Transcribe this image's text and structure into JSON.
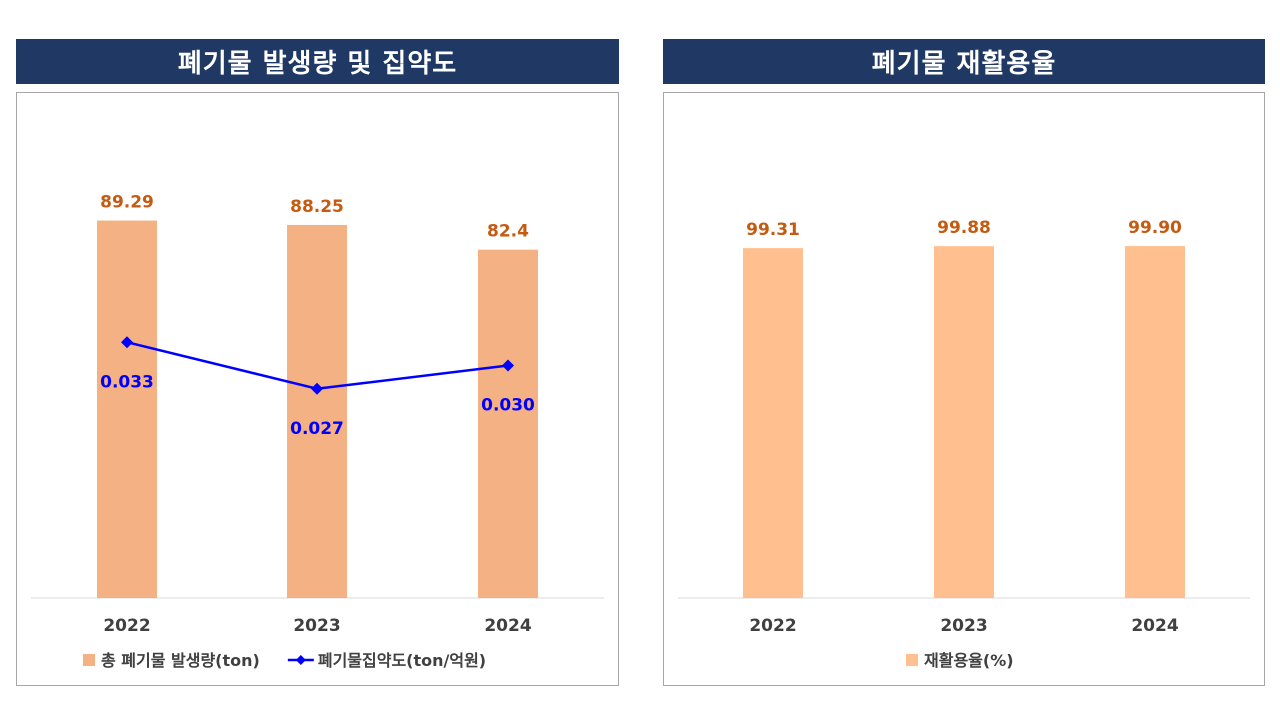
{
  "colors": {
    "header_bg": "#1f3864",
    "bar_left": "#f4b183",
    "bar_right": "#ffbf8e",
    "line": "#0000ff",
    "bar_label": "#c55a11",
    "axis_text": "#404040"
  },
  "chart_data": [
    {
      "type": "bar",
      "title": "폐기물 발생량 및 집약도",
      "categories": [
        "2022",
        "2023",
        "2024"
      ],
      "series": [
        {
          "name": "총 폐기물 발생량(ton)",
          "kind": "bar",
          "values": [
            89.29,
            88.25,
            82.4
          ],
          "labels": [
            "89.29",
            "88.25",
            "82.4"
          ]
        },
        {
          "name": "폐기물집약도(ton/억원)",
          "kind": "line",
          "values": [
            0.033,
            0.027,
            0.03
          ],
          "labels": [
            "0.033",
            "0.027",
            "0.030"
          ]
        }
      ],
      "ylim": [
        0,
        110
      ],
      "y2lim": [
        0,
        0.06
      ],
      "legend_position": "bottom"
    },
    {
      "type": "bar",
      "title": "폐기물 재활용율",
      "categories": [
        "2022",
        "2023",
        "2024"
      ],
      "series": [
        {
          "name": "재활용율(%)",
          "kind": "bar",
          "values": [
            99.31,
            99.88,
            99.9
          ],
          "labels": [
            "99.31",
            "99.88",
            "99.90"
          ]
        }
      ],
      "ylim": [
        0,
        132
      ],
      "legend_position": "bottom"
    }
  ]
}
